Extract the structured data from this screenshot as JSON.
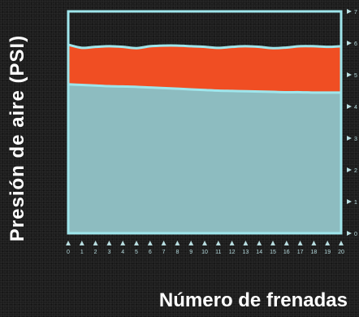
{
  "chart_data": {
    "type": "area",
    "xlabel": "Número de frenadas",
    "ylabel": "Presión de aire (PSI)",
    "x": [
      0,
      1,
      2,
      3,
      4,
      5,
      6,
      7,
      8,
      9,
      10,
      11,
      12,
      13,
      14,
      15,
      16,
      17,
      18,
      19,
      20
    ],
    "xlim": [
      0,
      20
    ],
    "ylim": [
      0,
      7
    ],
    "yticks": [
      "0",
      "1",
      "2",
      "3",
      "4",
      "5",
      "6",
      "7"
    ],
    "grid": false,
    "series": [
      {
        "values": [
          4.7,
          4.68,
          4.66,
          4.64,
          4.63,
          4.62,
          4.6,
          4.58,
          4.56,
          4.54,
          4.52,
          4.5,
          4.49,
          4.48,
          4.47,
          4.46,
          4.45,
          4.45,
          4.44,
          4.44,
          4.44
        ]
      },
      {
        "values": [
          5.95,
          5.85,
          5.88,
          5.9,
          5.88,
          5.84,
          5.9,
          5.92,
          5.92,
          5.9,
          5.88,
          5.85,
          5.88,
          5.9,
          5.88,
          5.84,
          5.86,
          5.9,
          5.9,
          5.88,
          5.9
        ]
      }
    ],
    "colors": {
      "lower_fill": "#8dbcc0",
      "band_fill": "#f04e23",
      "line": "#9fe6ec",
      "frame": "#9fe6ec",
      "tick": "#b8dde0",
      "label": "#ffffff"
    }
  }
}
